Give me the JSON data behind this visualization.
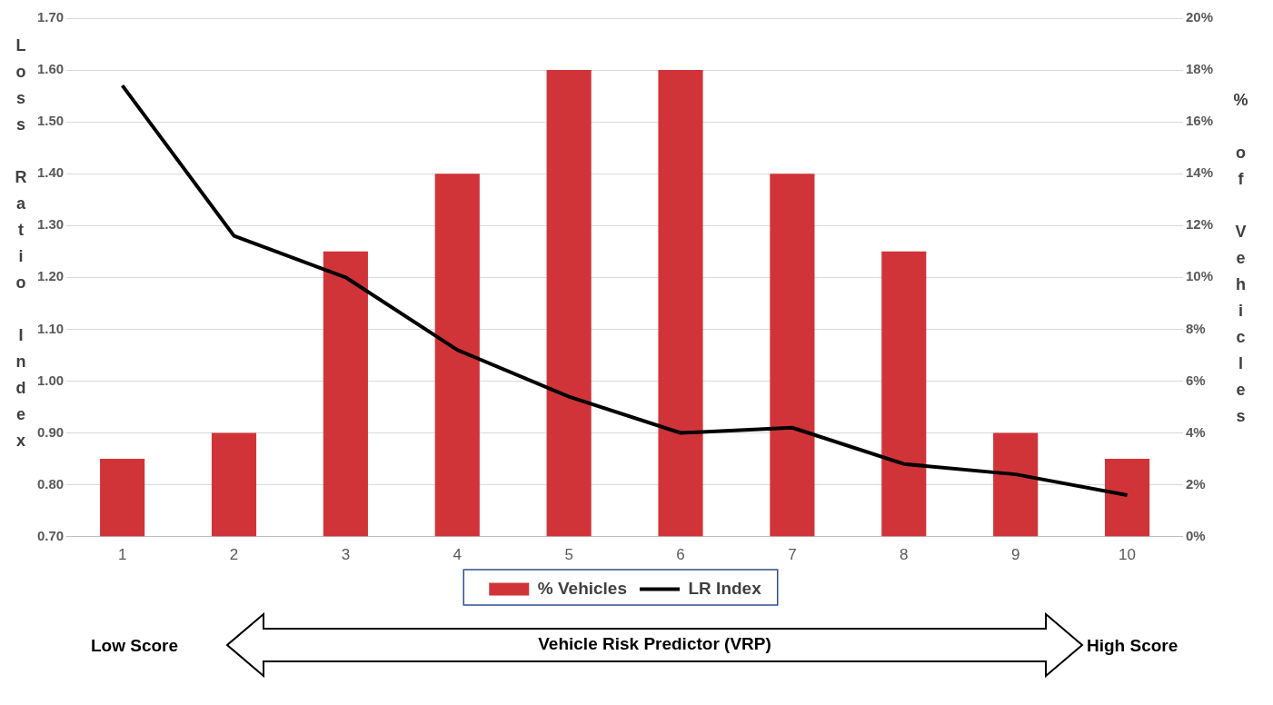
{
  "chart_data": {
    "type": "bar",
    "xlabel": "Vehicle Risk Predictor (VRP)",
    "ylabel": "Loss Ratio Index",
    "y2label": "% of Vehicles",
    "categories": [
      "1",
      "2",
      "3",
      "4",
      "5",
      "6",
      "7",
      "8",
      "9",
      "10"
    ],
    "series": [
      {
        "name": "% Vehicles",
        "axis": "y2",
        "color": "#d13438",
        "values": [
          3,
          4,
          11,
          14,
          18,
          18,
          14,
          11,
          4,
          3
        ]
      },
      {
        "name": "LR Index",
        "type": "line",
        "axis": "y",
        "color": "#000000",
        "values": [
          1.57,
          1.28,
          1.2,
          1.06,
          0.97,
          0.9,
          0.91,
          0.84,
          0.82,
          0.78
        ]
      }
    ],
    "ylim": [
      0.7,
      1.7
    ],
    "yticks": [
      {
        "value": 0.7,
        "label": "0.70"
      },
      {
        "value": 0.8,
        "label": "0.80"
      },
      {
        "value": 0.9,
        "label": "0.90"
      },
      {
        "value": 1.0,
        "label": "1.00"
      },
      {
        "value": 1.1,
        "label": "1.10"
      },
      {
        "value": 1.2,
        "label": "1.20"
      },
      {
        "value": 1.3,
        "label": "1.30"
      },
      {
        "value": 1.4,
        "label": "1.40"
      },
      {
        "value": 1.5,
        "label": "1.50"
      },
      {
        "value": 1.6,
        "label": "1.60"
      },
      {
        "value": 1.7,
        "label": "1.70"
      }
    ],
    "y2lim": [
      0,
      20
    ],
    "y2ticks": [
      {
        "value": 0,
        "label": "0%"
      },
      {
        "value": 2,
        "label": "2%"
      },
      {
        "value": 4,
        "label": "4%"
      },
      {
        "value": 6,
        "label": "6%"
      },
      {
        "value": 8,
        "label": "8%"
      },
      {
        "value": 10,
        "label": "10%"
      },
      {
        "value": 12,
        "label": "12%"
      },
      {
        "value": 14,
        "label": "14%"
      },
      {
        "value": 16,
        "label": "16%"
      },
      {
        "value": 18,
        "label": "18%"
      },
      {
        "value": 20,
        "label": "20%"
      }
    ],
    "grid": "y",
    "legend": "bottom",
    "marker": "none",
    "line_style": "solid",
    "annotations": [
      "Low Score",
      "High Score"
    ]
  }
}
